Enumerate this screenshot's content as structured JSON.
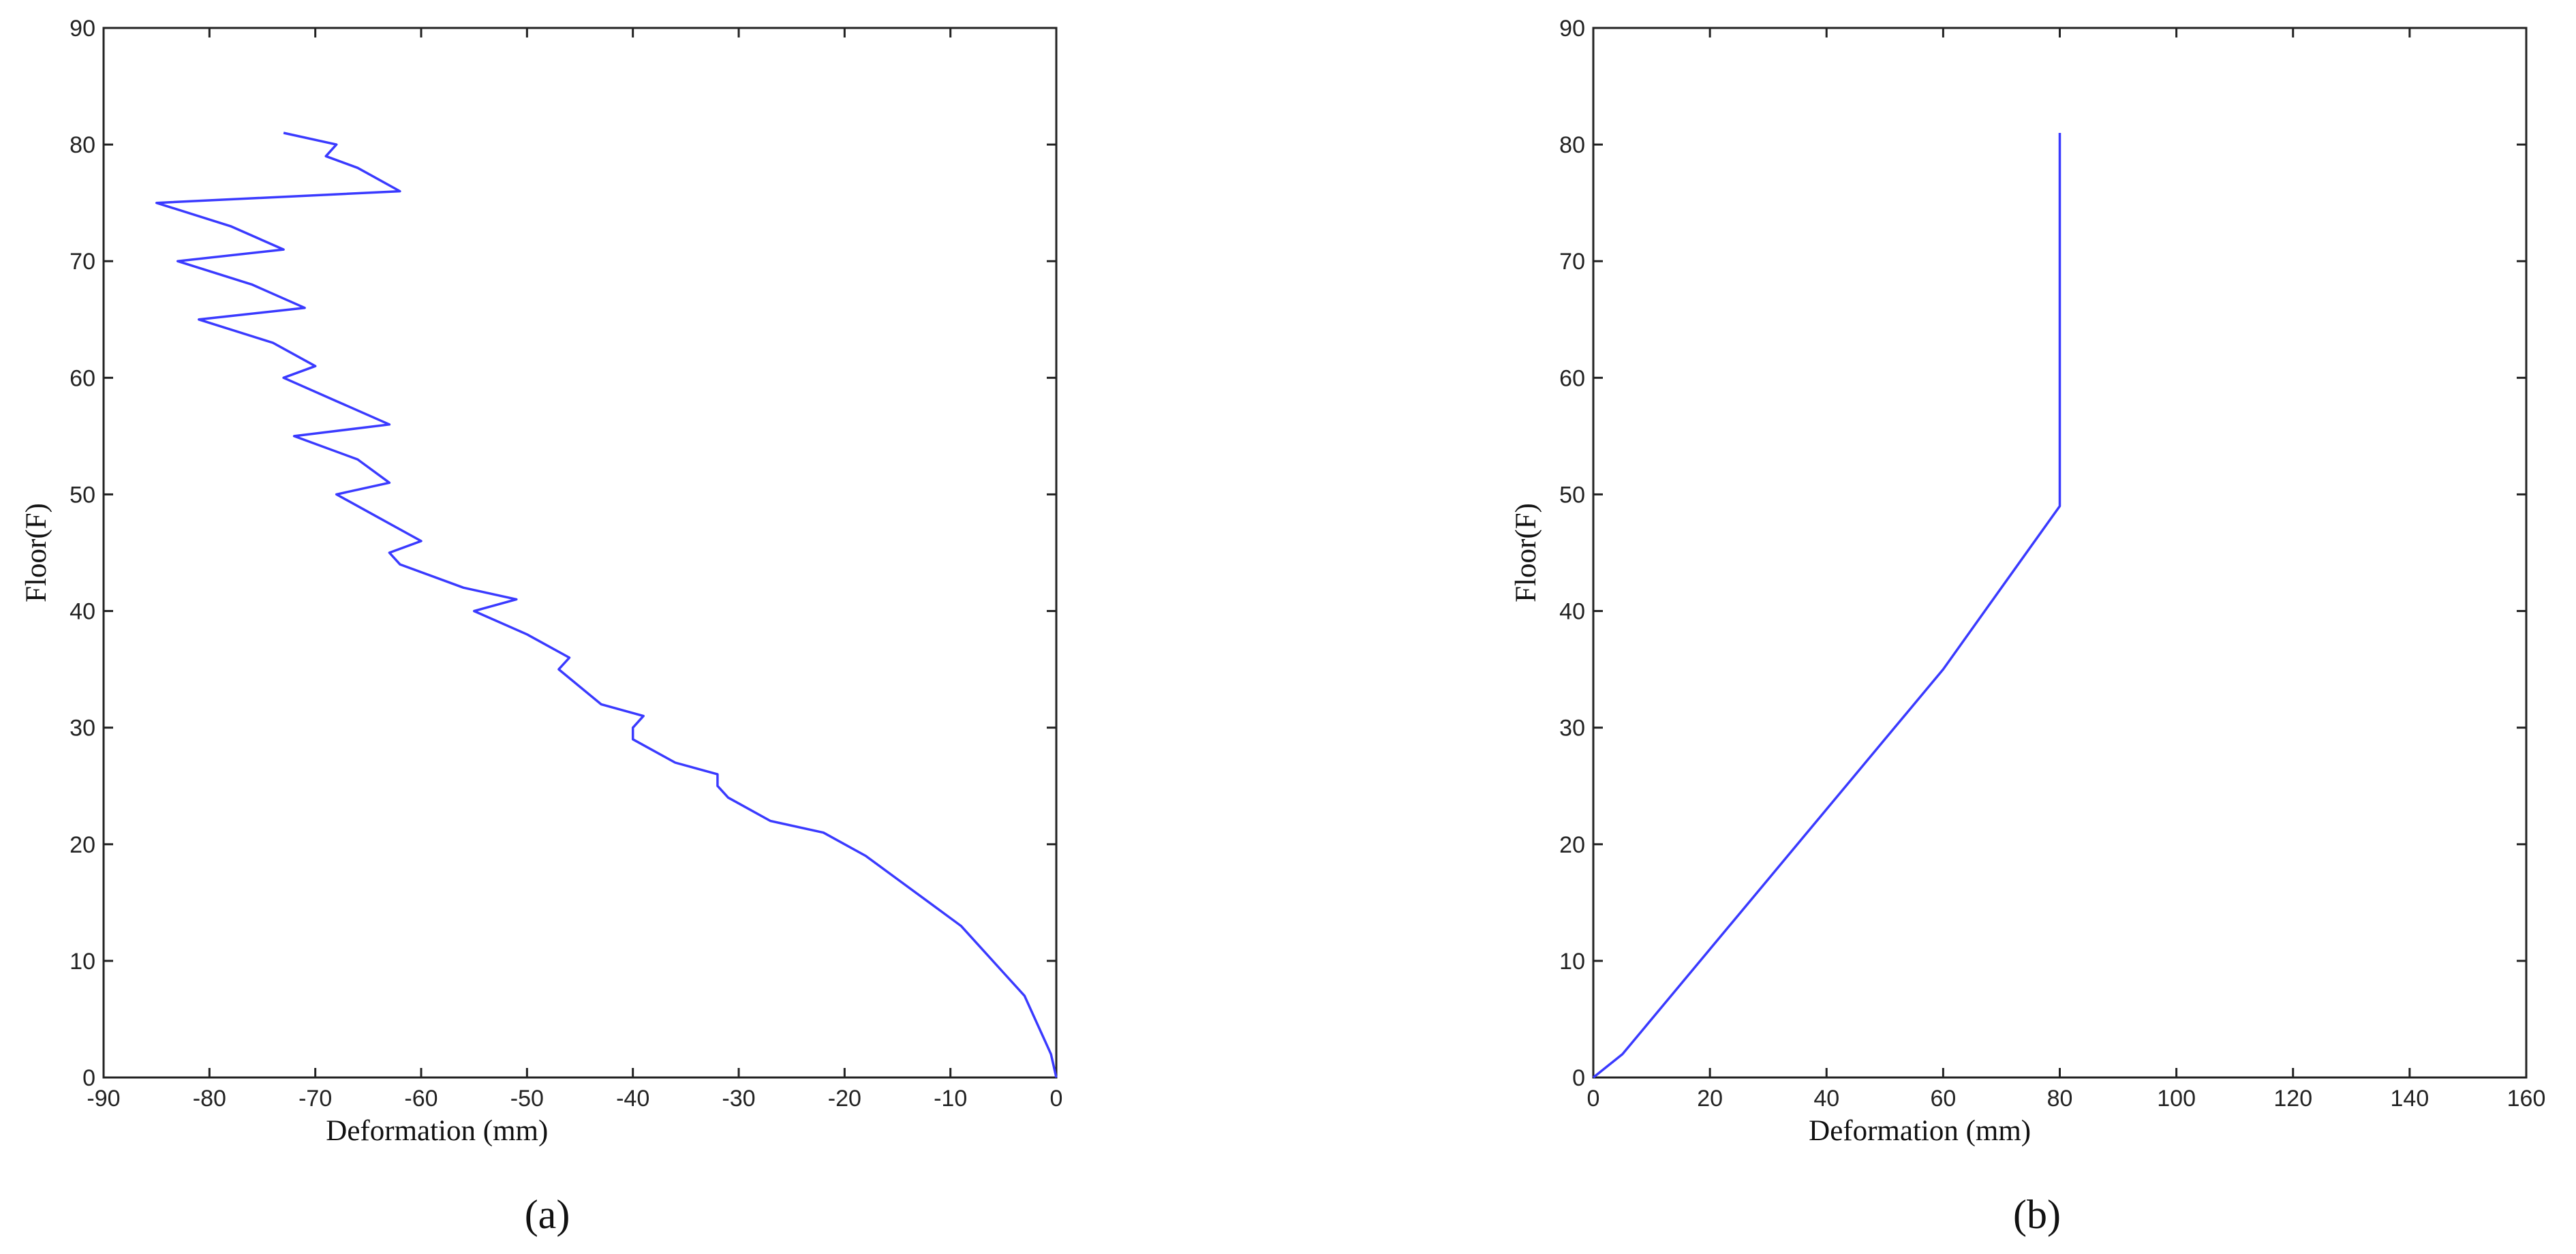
{
  "chart_data": [
    {
      "type": "line",
      "panel": "(a)",
      "xlabel": "Deformation (mm)",
      "ylabel": "Floor(F)",
      "xlim": [
        -90,
        0
      ],
      "xticks": [
        -90,
        -80,
        -70,
        -60,
        -50,
        -40,
        -30,
        -20,
        -10,
        0
      ],
      "ylim": [
        0,
        90
      ],
      "yticks": [
        0,
        10,
        20,
        30,
        40,
        50,
        60,
        70,
        80,
        90
      ],
      "series": [
        {
          "color": "#3a3aff",
          "x": [
            0,
            -0.5,
            -1,
            -2,
            -3,
            -5,
            -7,
            -9,
            -12,
            -15,
            -18,
            -22,
            -27,
            -31,
            -32,
            -32,
            -36,
            -40,
            -40,
            -39,
            -43,
            -47,
            -46,
            -50,
            -55,
            -51,
            -56,
            -62,
            -63,
            -60,
            -64,
            -68,
            -63,
            -66,
            -72,
            -63,
            -68,
            -73,
            -70,
            -74,
            -81,
            -71,
            -76,
            -83,
            -73,
            -78,
            -85,
            -62,
            -66,
            -69,
            -68,
            -73
          ],
          "values": [
            0,
            2,
            3,
            5,
            7,
            9,
            11,
            13,
            15,
            17,
            19,
            21,
            22,
            24,
            25,
            26,
            27,
            29,
            30,
            31,
            32,
            35,
            36,
            38,
            40,
            41,
            42,
            44,
            45,
            46,
            48,
            50,
            51,
            53,
            55,
            56,
            58,
            60,
            61,
            63,
            65,
            66,
            68,
            70,
            71,
            73,
            75,
            76,
            78,
            79,
            80,
            81
          ]
        }
      ]
    },
    {
      "type": "line",
      "panel": "(b)",
      "xlabel": "Deformation (mm)",
      "ylabel": "Floor(F)",
      "xlim": [
        0,
        160
      ],
      "xticks": [
        0,
        20,
        40,
        60,
        80,
        100,
        120,
        140,
        160
      ],
      "ylim": [
        0,
        90
      ],
      "yticks": [
        0,
        10,
        20,
        30,
        40,
        50,
        60,
        70,
        80,
        90
      ],
      "series": [
        {
          "color": "#3a3aff",
          "x": [
            0,
            5,
            10,
            20,
            30,
            40,
            50,
            60,
            70,
            80,
            80
          ],
          "values": [
            0,
            2,
            5,
            11,
            17,
            23,
            29,
            35,
            42,
            49,
            81
          ]
        }
      ]
    }
  ]
}
